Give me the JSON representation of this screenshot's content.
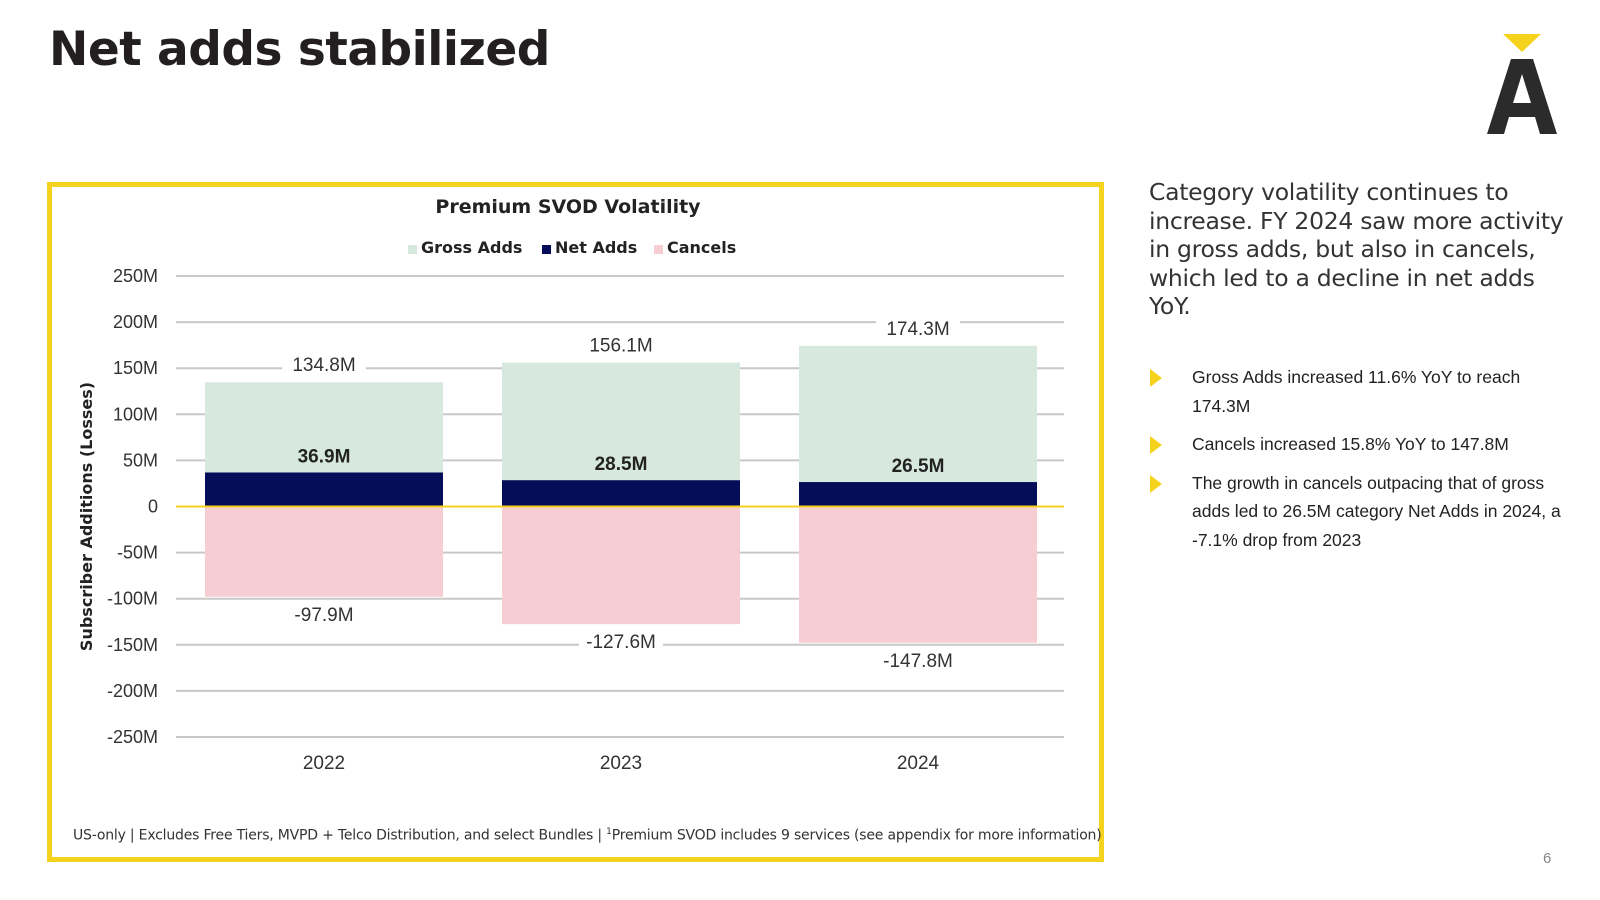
{
  "title": "Net adds stabilized",
  "page_number": "6",
  "accent_color": "#f5d21c",
  "logo_letter": "A",
  "footnote": {
    "prefix": "US-only | Excludes Free Tiers, MVPD + Telco Distribution, and select Bundles | ",
    "sup": "1",
    "suffix": "Premium SVOD includes 9 services (see appendix for more information)"
  },
  "sidebar": {
    "intro": "Category volatility continues to increase. FY 2024 saw more activity in gross adds, but also in cancels, which led to a decline in net adds YoY.",
    "bullets": [
      "Gross Adds increased 11.6% YoY to reach 174.3M",
      "Cancels increased 15.8% YoY to 147.8M",
      "The growth in cancels outpacing that of gross adds led to 26.5M category Net Adds in 2024, a -7.1% drop from 2023"
    ]
  },
  "chart_data": {
    "type": "bar",
    "title": "Premium SVOD Volatility",
    "ylabel": "Subscriber Additions (Losses)",
    "xlabel": "",
    "categories": [
      "2022",
      "2023",
      "2024"
    ],
    "ylim": [
      -250,
      250
    ],
    "yticks": [
      "250M",
      "200M",
      "150M",
      "100M",
      "50M",
      "0",
      "-50M",
      "-100M",
      "-150M",
      "-200M",
      "-250M"
    ],
    "yticks_values": [
      250,
      200,
      150,
      100,
      50,
      0,
      -50,
      -100,
      -150,
      -200,
      -250
    ],
    "legend_position": "top",
    "grid": true,
    "series": [
      {
        "name": "Gross Adds",
        "color": "#d7e9df",
        "values": [
          134.8,
          156.1,
          174.3
        ],
        "labels": [
          "134.8M",
          "156.1M",
          "174.3M"
        ]
      },
      {
        "name": "Net Adds",
        "color": "#050c58",
        "values": [
          36.9,
          28.5,
          26.5
        ],
        "labels": [
          "36.9M",
          "28.5M",
          "26.5M"
        ]
      },
      {
        "name": "Cancels",
        "color": "#f5cdd3",
        "values": [
          -97.9,
          -127.6,
          -147.8
        ],
        "labels": [
          "-97.9M",
          "-127.6M",
          "-147.8M"
        ]
      }
    ]
  }
}
